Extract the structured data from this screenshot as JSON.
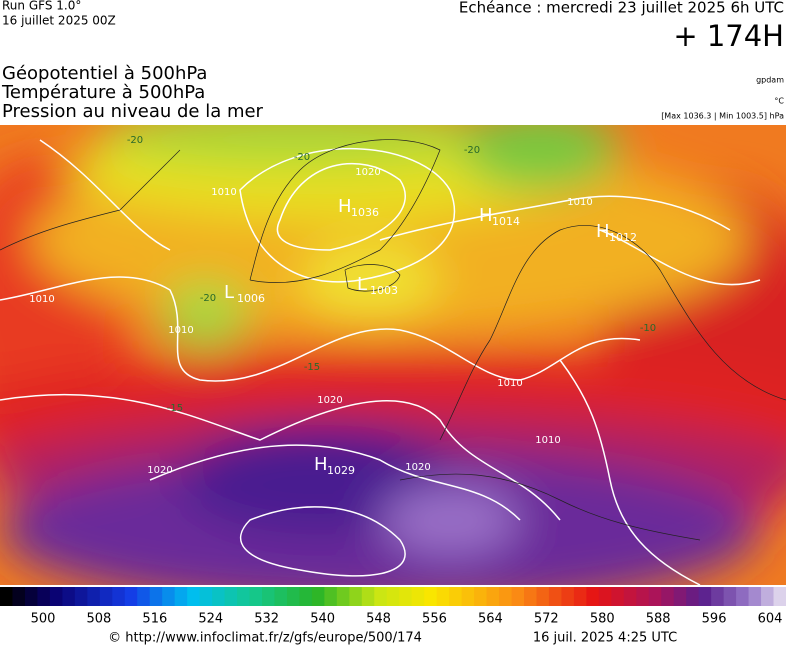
{
  "header": {
    "run": "Run GFS 1.0°",
    "run_date": "16 juillet 2025 00Z",
    "echeance": "Echéance : mercredi 23 juillet 2025 6h UTC",
    "lead": "+ 174H"
  },
  "titles": [
    "Géopotentiel à 500hPa",
    "Température à 500hPa",
    "Pression au niveau de la mer"
  ],
  "units": [
    "gpdam",
    "°C",
    "[Max 1036.3 | Min 1003.5] hPa"
  ],
  "map": {
    "centers": [
      {
        "letter": "H",
        "value": 1036
      },
      {
        "letter": "L",
        "value": 1006
      },
      {
        "letter": "L",
        "value": 1003
      },
      {
        "letter": "H",
        "value": 1014
      },
      {
        "letter": "H",
        "value": 1012
      },
      {
        "letter": "H",
        "value": 1029
      }
    ],
    "isobar_labels": [
      1020,
      1010,
      1010,
      1010,
      1020,
      1020,
      1020,
      1010,
      1010,
      1010
    ],
    "temperature_labels": [
      -20,
      -20,
      -20,
      -20,
      -15,
      -15,
      -10
    ]
  },
  "colorbar": {
    "ticks": [
      500,
      508,
      516,
      524,
      532,
      540,
      548,
      556,
      564,
      572,
      580,
      588,
      596,
      604
    ]
  },
  "footer": {
    "url": "© http://www.infoclimat.fr/z/gfs/europe/500/174",
    "date": "16 juil. 2025  4:25 UTC"
  }
}
